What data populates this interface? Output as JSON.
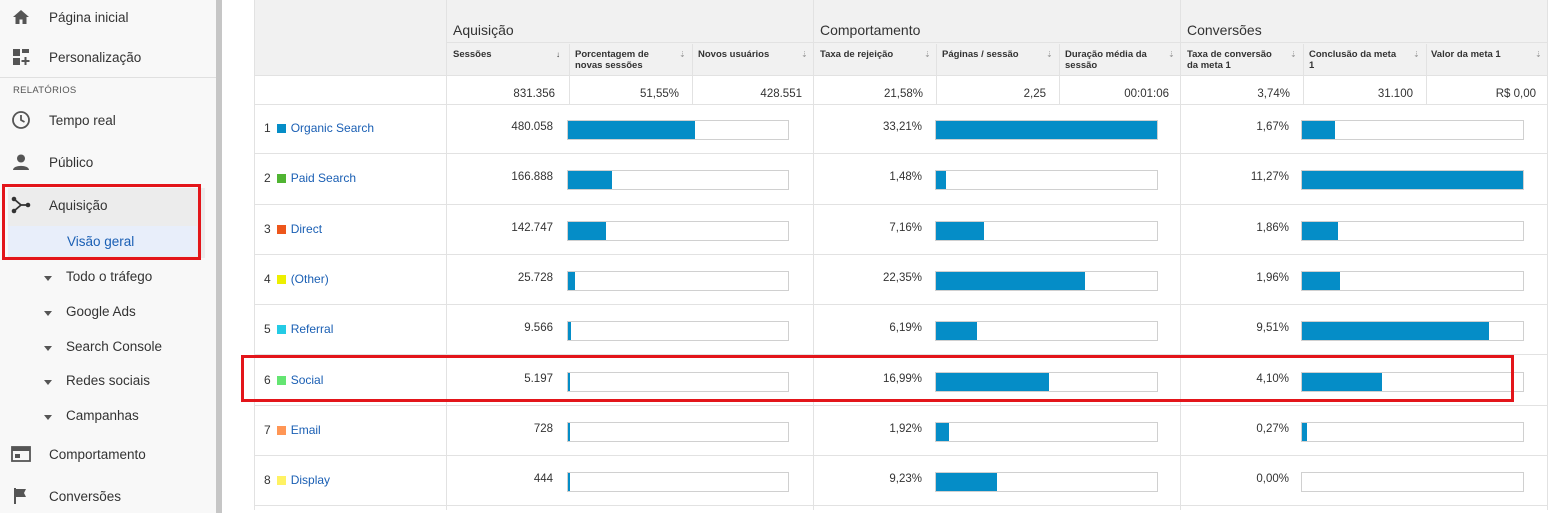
{
  "sidebar": {
    "items": [
      {
        "label": "Página inicial",
        "icon": "home-icon"
      },
      {
        "label": "Personalização",
        "icon": "dashboard-plus-icon"
      }
    ],
    "section_label": "RELATÓRIOS",
    "reports": [
      {
        "label": "Tempo real",
        "icon": "clock-icon"
      },
      {
        "label": "Público",
        "icon": "person-icon"
      },
      {
        "label": "Aquisição",
        "icon": "acquisition-icon"
      }
    ],
    "acquisition_overview": "Visão geral",
    "acquisition_subs": [
      "Todo o tráfego",
      "Google Ads",
      "Search Console",
      "Redes sociais",
      "Campanhas"
    ],
    "bottom": [
      {
        "label": "Comportamento",
        "icon": "behavior-icon"
      },
      {
        "label": "Conversões",
        "icon": "flag-icon"
      }
    ]
  },
  "table": {
    "groups": [
      "Aquisição",
      "Comportamento",
      "Conversões"
    ],
    "headers": {
      "sessions": "Sessões",
      "new_sessions_pct": "Porcentagem de novas sessões",
      "new_users": "Novos usuários",
      "bounce_rate": "Taxa de rejeição",
      "pages_per_session": "Páginas / sessão",
      "avg_duration": "Duração média da sessão",
      "conv_rate": "Taxa de conversão da meta 1",
      "goal_completions": "Conclusão da meta 1",
      "goal_value": "Valor da meta 1"
    },
    "totals": {
      "sessions": "831.356",
      "new_sessions_pct": "51,55%",
      "new_users": "428.551",
      "bounce_rate": "21,58%",
      "pages_per_session": "2,25",
      "avg_duration": "00:01:06",
      "conv_rate": "3,74%",
      "goal_completions": "31.100",
      "goal_value": "R$ 0,00"
    },
    "rows": [
      {
        "idx": "1",
        "name": "Organic Search",
        "color": "#058dc7",
        "sessions": "480.058",
        "sessions_bar": 0.578,
        "bounce": "33,21%",
        "bounce_bar": 1.0,
        "conv": "1,67%",
        "conv_bar": 0.148
      },
      {
        "idx": "2",
        "name": "Paid Search",
        "color": "#50b432",
        "sessions": "166.888",
        "sessions_bar": 0.201,
        "bounce": "1,48%",
        "bounce_bar": 0.045,
        "conv": "11,27%",
        "conv_bar": 1.0
      },
      {
        "idx": "3",
        "name": "Direct",
        "color": "#ed561b",
        "sessions": "142.747",
        "sessions_bar": 0.172,
        "bounce": "7,16%",
        "bounce_bar": 0.216,
        "conv": "1,86%",
        "conv_bar": 0.165
      },
      {
        "idx": "4",
        "name": "(Other)",
        "color": "#edef00",
        "sessions": "25.728",
        "sessions_bar": 0.031,
        "bounce": "22,35%",
        "bounce_bar": 0.673,
        "conv": "1,96%",
        "conv_bar": 0.174
      },
      {
        "idx": "5",
        "name": "Referral",
        "color": "#24cbe5",
        "sessions": "9.566",
        "sessions_bar": 0.012,
        "bounce": "6,19%",
        "bounce_bar": 0.186,
        "conv": "9,51%",
        "conv_bar": 0.844
      },
      {
        "idx": "6",
        "name": "Social",
        "color": "#64e572",
        "sessions": "5.197",
        "sessions_bar": 0.006,
        "bounce": "16,99%",
        "bounce_bar": 0.512,
        "conv": "4,10%",
        "conv_bar": 0.364
      },
      {
        "idx": "7",
        "name": "Email",
        "color": "#ff9655",
        "sessions": "728",
        "sessions_bar": 0.001,
        "bounce": "1,92%",
        "bounce_bar": 0.058,
        "conv": "0,27%",
        "conv_bar": 0.024
      },
      {
        "idx": "8",
        "name": "Display",
        "color": "#fff263",
        "sessions": "444",
        "sessions_bar": 0.001,
        "bounce": "9,23%",
        "bounce_bar": 0.278,
        "conv": "0,00%",
        "conv_bar": 0.0
      }
    ]
  },
  "colors": {
    "bar": "#058dc7",
    "highlight": "#e3151a",
    "link": "#1a5fb4"
  }
}
